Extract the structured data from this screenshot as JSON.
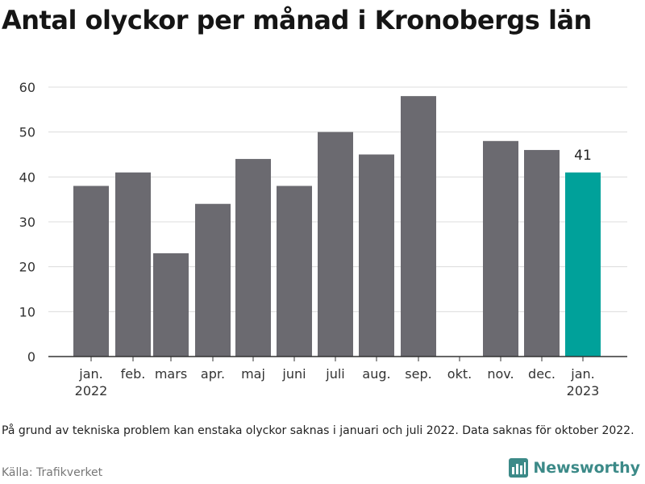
{
  "title": "Antal olyckor per månad i Kronobergs län",
  "footnote": "På grund av tekniska problem kan enstaka olyckor saknas i januari och juli 2022. Data saknas för oktober 2022.",
  "source": "Källa: Trafikverket",
  "brand": {
    "name": "Newsworthy",
    "color": "#3c8a88"
  },
  "chart_data": {
    "type": "bar",
    "categories": [
      [
        "jan.",
        "2022"
      ],
      [
        "feb."
      ],
      [
        "mars"
      ],
      [
        "apr."
      ],
      [
        "maj"
      ],
      [
        "juni"
      ],
      [
        "juli"
      ],
      [
        "aug."
      ],
      [
        "sep."
      ],
      [
        "okt."
      ],
      [
        "nov."
      ],
      [
        "dec."
      ],
      [
        "jan.",
        "2023"
      ]
    ],
    "values": [
      38,
      41,
      23,
      34,
      44,
      38,
      50,
      45,
      58,
      null,
      48,
      46,
      41
    ],
    "highlight_index": 12,
    "highlight_label": "41",
    "yticks": [
      0,
      10,
      20,
      30,
      40,
      50,
      60
    ],
    "ylim": [
      0,
      60
    ],
    "grid": true,
    "colors": {
      "bar": "#6b6a70",
      "highlight": "#00a19a",
      "grid": "#dcdcdc",
      "axis": "#333333"
    }
  }
}
